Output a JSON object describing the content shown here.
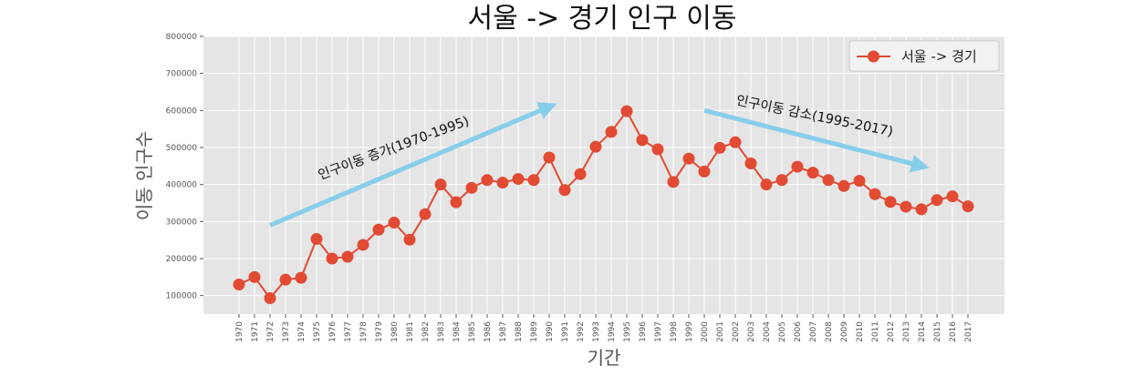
{
  "chart_data": {
    "type": "line",
    "title": "서울 -> 경기 인구 이동",
    "xlabel": "기간",
    "ylabel": "이동 인구수",
    "ylim": [
      50000,
      800000
    ],
    "yticks": [
      100000,
      200000,
      300000,
      400000,
      500000,
      600000,
      700000,
      800000
    ],
    "grid": true,
    "legend_position": "top-right",
    "categories": [
      "1970",
      "1971",
      "1972",
      "1973",
      "1974",
      "1975",
      "1976",
      "1977",
      "1978",
      "1979",
      "1980",
      "1981",
      "1982",
      "1983",
      "1984",
      "1985",
      "1986",
      "1987",
      "1988",
      "1989",
      "1990",
      "1991",
      "1992",
      "1993",
      "1994",
      "1995",
      "1996",
      "1997",
      "1998",
      "1999",
      "2000",
      "2001",
      "2002",
      "2003",
      "2004",
      "2005",
      "2006",
      "2007",
      "2008",
      "2009",
      "2010",
      "2011",
      "2012",
      "2013",
      "2014",
      "2015",
      "2016",
      "2017"
    ],
    "series": [
      {
        "name": "서울 -> 경기",
        "color": "#e24a33",
        "values": [
          130000,
          150000,
          93000,
          143000,
          148000,
          253000,
          200000,
          205000,
          237000,
          278000,
          297000,
          251000,
          320000,
          400000,
          352000,
          391000,
          412000,
          405000,
          415000,
          412000,
          473000,
          385000,
          428000,
          502000,
          542000,
          598000,
          520000,
          495000,
          407000,
          470000,
          435000,
          499000,
          514000,
          457000,
          400000,
          412000,
          448000,
          432000,
          412000,
          396000,
          410000,
          374000,
          353000,
          340000,
          333000,
          358000,
          368000,
          341000
        ]
      }
    ],
    "annotations": [
      {
        "text": "인구이동 증가(1970-1995)",
        "arrow_from": [
          "1972",
          290000
        ],
        "arrow_to": [
          "1990",
          610000
        ],
        "arrow_color": "#87ceeb"
      },
      {
        "text": "인구이동 감소(1995-2017)",
        "arrow_from": [
          "2000",
          600000
        ],
        "arrow_to": [
          "2014",
          450000
        ],
        "arrow_color": "#87ceeb"
      }
    ]
  }
}
